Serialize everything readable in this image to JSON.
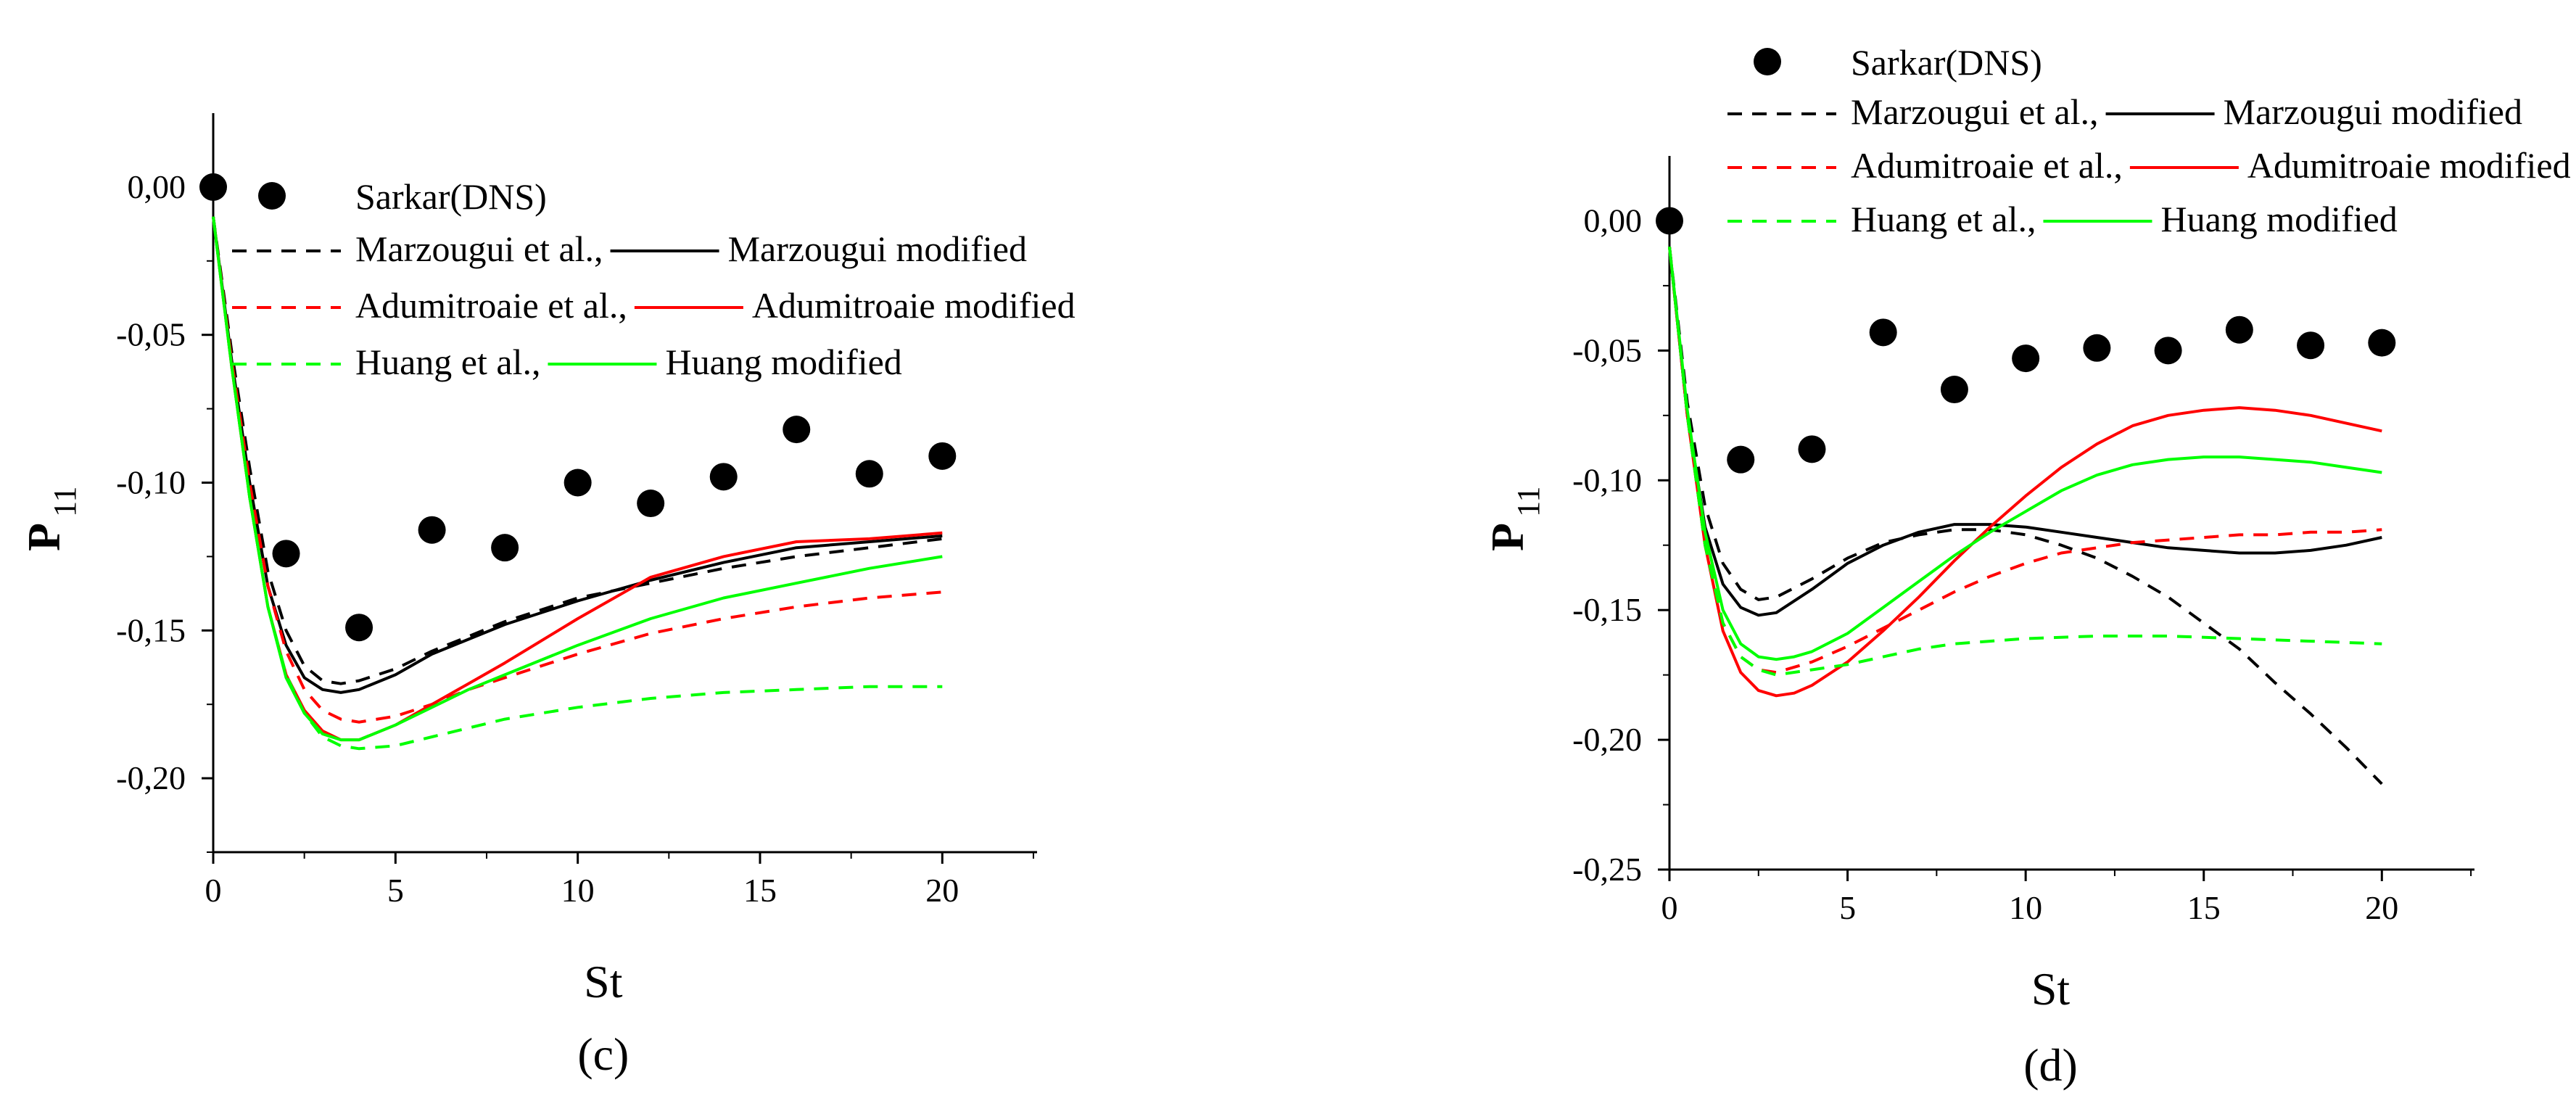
{
  "chart_data": [
    {
      "type": "line",
      "caption": "(c)",
      "xlabel": "St",
      "ylabel": "P",
      "ylabel_sub": "11",
      "xlim": [
        0,
        22.6
      ],
      "ylim": [
        -0.225,
        0.025
      ],
      "xticks": [
        0,
        5,
        10,
        15,
        20
      ],
      "xtick_labels": [
        "0",
        "5",
        "10",
        "15",
        "20"
      ],
      "yticks": [
        0,
        -0.05,
        -0.1,
        -0.15,
        -0.2
      ],
      "ytick_labels": [
        "0,00",
        "-0,05",
        "-0,10",
        "-0,15",
        "-0,20"
      ],
      "grid": false,
      "legend": {
        "placement": "top-right",
        "scatter_label": "Sarkar(DNS)",
        "rows": [
          {
            "dashed": "Marzougui et al.,",
            "solid": "Marzougui modified",
            "color": "#000000"
          },
          {
            "dashed": "Adumitroaie et al.,",
            "solid": "Adumitroaie modified",
            "color": "#ff0000"
          },
          {
            "dashed": "Huang et al.,",
            "solid": "Huang modified",
            "color": "#00ff00"
          }
        ]
      },
      "scatter": {
        "name": "Sarkar(DNS)",
        "color": "#000000",
        "x": [
          0,
          2,
          4,
          6,
          8,
          10,
          12,
          14,
          16,
          18,
          20
        ],
        "y": [
          0.0,
          -0.124,
          -0.149,
          -0.116,
          -0.122,
          -0.1,
          -0.107,
          -0.098,
          -0.082,
          -0.097,
          -0.091
        ]
      },
      "series": [
        {
          "name": "Marzougui et al.",
          "style": "dashed",
          "color": "#000000",
          "x": [
            0,
            0.5,
            1,
            1.5,
            2,
            2.5,
            3,
            3.5,
            4,
            5,
            6,
            7,
            8,
            10,
            12,
            14,
            16,
            18,
            20
          ],
          "y": [
            -0.01,
            -0.055,
            -0.095,
            -0.13,
            -0.15,
            -0.162,
            -0.167,
            -0.168,
            -0.167,
            -0.163,
            -0.157,
            -0.152,
            -0.147,
            -0.139,
            -0.134,
            -0.129,
            -0.125,
            -0.122,
            -0.119
          ]
        },
        {
          "name": "Marzougui modified",
          "style": "solid",
          "color": "#000000",
          "x": [
            0,
            0.5,
            1,
            1.5,
            2,
            2.5,
            3,
            3.5,
            4,
            5,
            6,
            7,
            8,
            10,
            12,
            14,
            16,
            18,
            20
          ],
          "y": [
            -0.01,
            -0.058,
            -0.1,
            -0.135,
            -0.155,
            -0.166,
            -0.17,
            -0.171,
            -0.17,
            -0.165,
            -0.158,
            -0.153,
            -0.148,
            -0.14,
            -0.133,
            -0.127,
            -0.122,
            -0.12,
            -0.118
          ]
        },
        {
          "name": "Adumitroaie et al.",
          "style": "dashed",
          "color": "#ff0000",
          "x": [
            0,
            0.5,
            1,
            1.5,
            2,
            2.5,
            3,
            3.5,
            4,
            5,
            6,
            7,
            8,
            10,
            12,
            14,
            16,
            18,
            20
          ],
          "y": [
            -0.01,
            -0.058,
            -0.1,
            -0.135,
            -0.157,
            -0.17,
            -0.177,
            -0.18,
            -0.181,
            -0.179,
            -0.175,
            -0.17,
            -0.166,
            -0.158,
            -0.151,
            -0.146,
            -0.142,
            -0.139,
            -0.137
          ]
        },
        {
          "name": "Adumitroaie modified",
          "style": "solid",
          "color": "#ff0000",
          "x": [
            0,
            0.5,
            1,
            1.5,
            2,
            2.5,
            3,
            3.5,
            4,
            5,
            6,
            7,
            8,
            10,
            12,
            14,
            16,
            18,
            20
          ],
          "y": [
            -0.01,
            -0.06,
            -0.105,
            -0.142,
            -0.165,
            -0.177,
            -0.184,
            -0.187,
            -0.187,
            -0.182,
            -0.175,
            -0.168,
            -0.161,
            -0.146,
            -0.132,
            -0.125,
            -0.12,
            -0.119,
            -0.117
          ]
        },
        {
          "name": "Huang et al.",
          "style": "dashed",
          "color": "#00ff00",
          "x": [
            0,
            0.5,
            1,
            1.5,
            2,
            2.5,
            3,
            3.5,
            4,
            5,
            6,
            7,
            8,
            10,
            12,
            14,
            16,
            18,
            20
          ],
          "y": [
            -0.01,
            -0.06,
            -0.105,
            -0.142,
            -0.165,
            -0.178,
            -0.186,
            -0.189,
            -0.19,
            -0.189,
            -0.186,
            -0.183,
            -0.18,
            -0.176,
            -0.173,
            -0.171,
            -0.17,
            -0.169,
            -0.169
          ]
        },
        {
          "name": "Huang modified",
          "style": "solid",
          "color": "#00ff00",
          "x": [
            0,
            0.5,
            1,
            1.5,
            2,
            2.5,
            3,
            3.5,
            4,
            5,
            6,
            7,
            8,
            10,
            12,
            14,
            16,
            18,
            20
          ],
          "y": [
            -0.01,
            -0.06,
            -0.105,
            -0.142,
            -0.166,
            -0.178,
            -0.185,
            -0.187,
            -0.187,
            -0.182,
            -0.176,
            -0.17,
            -0.165,
            -0.155,
            -0.146,
            -0.139,
            -0.134,
            -0.129,
            -0.125
          ]
        }
      ]
    },
    {
      "type": "line",
      "caption": "(d)",
      "xlabel": "St",
      "ylabel": "P",
      "ylabel_sub": "11",
      "xlim": [
        0,
        22.6
      ],
      "ylim": [
        -0.25,
        0.025
      ],
      "xticks": [
        0,
        5,
        10,
        15,
        20
      ],
      "xtick_labels": [
        "0",
        "5",
        "10",
        "15",
        "20"
      ],
      "yticks": [
        0,
        -0.05,
        -0.1,
        -0.15,
        -0.2,
        -0.25
      ],
      "ytick_labels": [
        "0,00",
        "-0,05",
        "-0,10",
        "-0,15",
        "-0,20",
        "-0,25"
      ],
      "grid": false,
      "legend": {
        "placement": "top, above plot",
        "scatter_label": "Sarkar(DNS)",
        "rows": [
          {
            "dashed": "Marzougui et al.,",
            "solid": "Marzougui modified",
            "color": "#000000"
          },
          {
            "dashed": "Adumitroaie et al.,",
            "solid": "Adumitroaie modified",
            "color": "#ff0000"
          },
          {
            "dashed": "Huang et al.,",
            "solid": "Huang modified",
            "color": "#00ff00"
          }
        ]
      },
      "scatter": {
        "name": "Sarkar(DNS)",
        "color": "#000000",
        "x": [
          0,
          2,
          4,
          6,
          8,
          10,
          12,
          14,
          16,
          18,
          20
        ],
        "y": [
          0.0,
          -0.092,
          -0.088,
          -0.043,
          -0.065,
          -0.053,
          -0.049,
          -0.05,
          -0.042,
          -0.048,
          -0.047
        ]
      },
      "series": [
        {
          "name": "Marzougui et al.",
          "style": "dashed",
          "color": "#000000",
          "x": [
            0,
            0.5,
            1,
            1.5,
            2,
            2.5,
            3,
            4,
            5,
            6,
            7,
            8,
            9,
            10,
            11,
            12,
            13,
            14,
            15,
            16,
            17,
            18,
            19,
            20
          ],
          "y": [
            -0.01,
            -0.07,
            -0.11,
            -0.132,
            -0.142,
            -0.146,
            -0.145,
            -0.138,
            -0.13,
            -0.124,
            -0.121,
            -0.119,
            -0.119,
            -0.121,
            -0.125,
            -0.13,
            -0.137,
            -0.145,
            -0.155,
            -0.165,
            -0.178,
            -0.19,
            -0.203,
            -0.217
          ]
        },
        {
          "name": "Marzougui modified",
          "style": "solid",
          "color": "#000000",
          "x": [
            0,
            0.5,
            1,
            1.5,
            2,
            2.5,
            3,
            4,
            5,
            6,
            7,
            8,
            9,
            10,
            11,
            12,
            13,
            14,
            15,
            16,
            17,
            18,
            19,
            20
          ],
          "y": [
            -0.01,
            -0.075,
            -0.118,
            -0.14,
            -0.149,
            -0.152,
            -0.151,
            -0.142,
            -0.132,
            -0.125,
            -0.12,
            -0.117,
            -0.117,
            -0.118,
            -0.12,
            -0.122,
            -0.124,
            -0.126,
            -0.127,
            -0.128,
            -0.128,
            -0.127,
            -0.125,
            -0.122
          ]
        },
        {
          "name": "Adumitroaie et al.",
          "style": "dashed",
          "color": "#ff0000",
          "x": [
            0,
            0.5,
            1,
            1.5,
            2,
            2.5,
            3,
            4,
            5,
            6,
            7,
            8,
            9,
            10,
            11,
            12,
            13,
            14,
            15,
            16,
            17,
            18,
            19,
            20
          ],
          "y": [
            -0.01,
            -0.075,
            -0.125,
            -0.155,
            -0.168,
            -0.173,
            -0.174,
            -0.17,
            -0.164,
            -0.157,
            -0.15,
            -0.143,
            -0.137,
            -0.132,
            -0.128,
            -0.126,
            -0.124,
            -0.123,
            -0.122,
            -0.121,
            -0.121,
            -0.12,
            -0.12,
            -0.119
          ]
        },
        {
          "name": "Adumitroaie modified",
          "style": "solid",
          "color": "#ff0000",
          "x": [
            0,
            0.5,
            1,
            1.5,
            2,
            2.5,
            3,
            3.5,
            4,
            5,
            6,
            7,
            8,
            9,
            10,
            11,
            12,
            13,
            14,
            15,
            16,
            17,
            18,
            19,
            20
          ],
          "y": [
            -0.01,
            -0.075,
            -0.125,
            -0.158,
            -0.174,
            -0.181,
            -0.183,
            -0.182,
            -0.179,
            -0.17,
            -0.158,
            -0.145,
            -0.131,
            -0.118,
            -0.106,
            -0.095,
            -0.086,
            -0.079,
            -0.075,
            -0.073,
            -0.072,
            -0.073,
            -0.075,
            -0.078,
            -0.081
          ]
        },
        {
          "name": "Huang et al.",
          "style": "dashed",
          "color": "#00ff00",
          "x": [
            0,
            0.5,
            1,
            1.5,
            2,
            2.5,
            3,
            4,
            5,
            6,
            7,
            8,
            9,
            10,
            12,
            14,
            16,
            18,
            20
          ],
          "y": [
            -0.01,
            -0.075,
            -0.125,
            -0.155,
            -0.168,
            -0.173,
            -0.175,
            -0.173,
            -0.171,
            -0.168,
            -0.165,
            -0.163,
            -0.162,
            -0.161,
            -0.16,
            -0.16,
            -0.161,
            -0.162,
            -0.163
          ]
        },
        {
          "name": "Huang modified",
          "style": "solid",
          "color": "#00ff00",
          "x": [
            0,
            0.5,
            1,
            1.5,
            2,
            2.5,
            3,
            3.5,
            4,
            5,
            6,
            7,
            8,
            9,
            10,
            11,
            12,
            13,
            14,
            15,
            16,
            17,
            18,
            19,
            20
          ],
          "y": [
            -0.01,
            -0.073,
            -0.12,
            -0.15,
            -0.163,
            -0.168,
            -0.169,
            -0.168,
            -0.166,
            -0.159,
            -0.149,
            -0.139,
            -0.129,
            -0.12,
            -0.112,
            -0.104,
            -0.098,
            -0.094,
            -0.092,
            -0.091,
            -0.091,
            -0.092,
            -0.093,
            -0.095,
            -0.097
          ]
        }
      ]
    }
  ]
}
